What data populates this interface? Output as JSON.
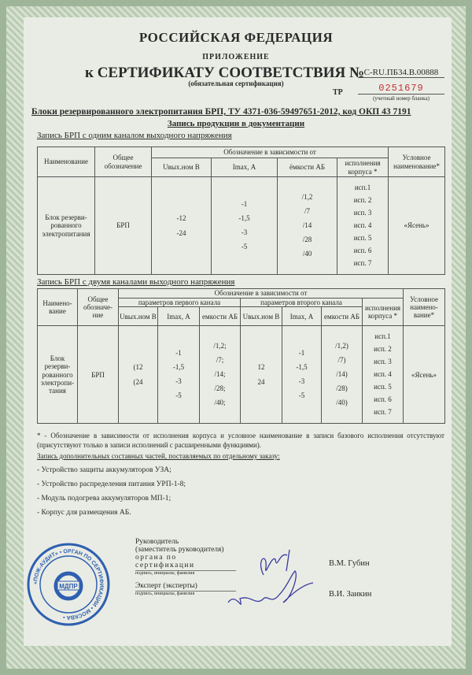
{
  "header": {
    "country": "РОССИЙСКАЯ ФЕДЕРАЦИЯ",
    "appendix": "ПРИЛОЖЕНИЕ",
    "certificate_title": "к СЕРТИФИКАТУ СООТВЕТСТВИЯ №",
    "certificate_number": "C-RU.ПБ34.В.00888",
    "certification_type": "(обязательная сертификация)",
    "tr_label": "ТР",
    "blank_number": "0251679",
    "blank_number_label": "(учетный номер бланка)"
  },
  "product_title": "Блоки резервированного электропитания БРП, ТУ 4371-036-59497651-2012, код ОКП 43 7191",
  "doc_record_title": "Запись продукции в документации",
  "table1": {
    "title": "Запись БРП с одним каналом выходного напряжения",
    "headers": {
      "name": "Наименование",
      "general": "Общее обозначение",
      "group": "Обозначение в зависимости от",
      "u": "Uвых.ном В",
      "i": "Imax, А",
      "cap": "ёмкости АБ",
      "case": "исполнения корпуса *",
      "cond": "Условное наименование*"
    },
    "row": {
      "name": "Блок резерви-рованного электропитания",
      "general": "БРП",
      "u": [
        "-12",
        "-24"
      ],
      "i": [
        "-1",
        "-1,5",
        "-3",
        "-5"
      ],
      "cap": [
        "/1,2",
        "/7",
        "/14",
        "/28",
        "/40"
      ],
      "case": [
        "исп.1",
        "исп. 2",
        "исп. 3",
        "исп. 4",
        "исп. 5",
        "исп. 6",
        "исп. 7"
      ],
      "cond": "«Ясень»"
    }
  },
  "table2": {
    "title": "Запись БРП с двумя каналами выходного напряжения",
    "headers": {
      "name": "Наимено-вание",
      "general": "Общее обозначе-ние",
      "group": "Обозначение в зависимости от",
      "ch1": "параметров первого канала",
      "ch2": "параметров второго канала",
      "u": "Uвых.ном В",
      "i": "Imax, А",
      "cap": "емкости АБ",
      "case": "исполнения корпуса *",
      "cond": "Условное наимено-вание*"
    },
    "row": {
      "name": "Блок резерви-рованного электропи-тания",
      "general": "БРП",
      "u1": [
        "(12",
        "(24"
      ],
      "i1": [
        "-1",
        "-1,5",
        "-3",
        "-5"
      ],
      "cap1": [
        "/1,2;",
        "/7;",
        "/14;",
        "/28;",
        "/40;"
      ],
      "u2": [
        "12",
        "24"
      ],
      "i2": [
        "-1",
        "-1,5",
        "-3",
        "-5"
      ],
      "cap2": [
        "/1,2)",
        "/7)",
        "/14)",
        "/28)",
        "/40)"
      ],
      "case": [
        "исп.1",
        "исп. 2",
        "исп. 3",
        "исп. 4",
        "исп. 5",
        "исп. 6",
        "исп. 7"
      ],
      "cond": "«Ясень»"
    }
  },
  "footnote": "* - Обозначение в зависимости от исполнения корпуса и условное наименование в записи базового исполнения отсутствуют (присутствуют только в записи исполнений с расширенными функциями).",
  "extras_title": "Запись дополнительных составных частей, поставляемых по отдельному заказу:",
  "extras": [
    "- Устройство защиты аккумуляторов УЗА;",
    "- Устройство распределения питания УРП-1-8;",
    "- Модуль подогрева аккумуляторов МП-1;",
    "- Корпус для размещения АБ."
  ],
  "signatures": {
    "head_label_1": "Руководитель",
    "head_label_2": "(заместитель руководителя)",
    "head_label_3": "органа по сертификации",
    "sign_hint": "подпись, инициалы, фамилия",
    "head_name": "В.М. Губин",
    "expert_label": "Эксперт (эксперты)",
    "expert_name": "В.И. Заикин"
  },
  "stamp": {
    "text": "«ПОЖ-АУДИТ» • МОСКВА •",
    "center": "МДПР",
    "color": "#2f5fb0"
  },
  "colors": {
    "frame": "#9fb59a",
    "paper": "#e9ece4",
    "stamp": "#2f5fb0",
    "signature": "#3a3aa0",
    "blank_number": "#c0303a"
  }
}
